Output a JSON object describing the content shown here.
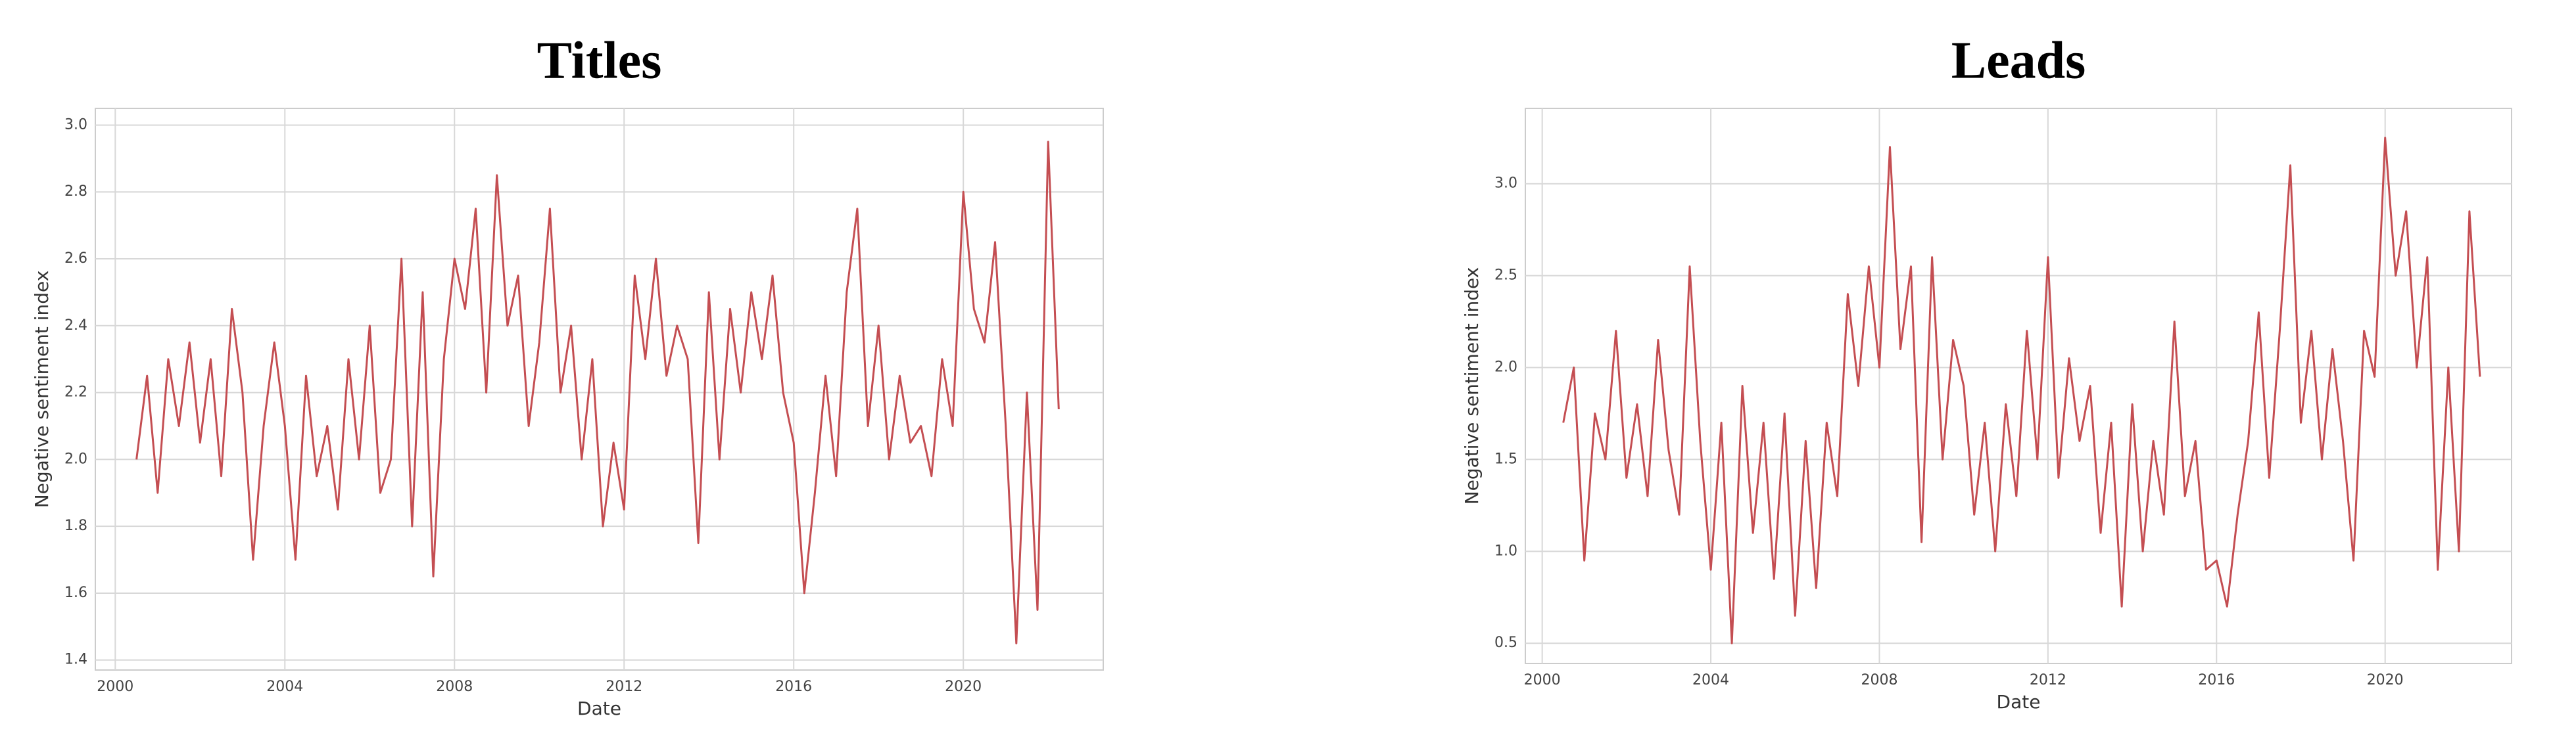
{
  "chart_data": [
    {
      "type": "line",
      "title": "Titles",
      "xlabel": "Date",
      "ylabel": "Negative sentiment index",
      "xlim": [
        1999.53,
        2023.3
      ],
      "ylim": [
        1.37,
        3.05
      ],
      "grid": true,
      "xticks": [
        2000,
        2004,
        2008,
        2012,
        2016,
        2020
      ],
      "yticks": [
        1.4,
        1.6,
        1.8,
        {
          "value": 2,
          "label": "2.0"
        },
        2.2,
        2.4,
        2.6,
        2.8,
        {
          "value": 3,
          "label": "3.0"
        }
      ],
      "x": [
        2000.5,
        2000.75,
        2001,
        2001.25,
        2001.5,
        2001.75,
        2002,
        2002.25,
        2002.5,
        2002.75,
        2003,
        2003.25,
        2003.5,
        2003.75,
        2004,
        2004.25,
        2004.5,
        2004.75,
        2005,
        2005.25,
        2005.5,
        2005.75,
        2006,
        2006.25,
        2006.5,
        2006.75,
        2007,
        2007.25,
        2007.5,
        2007.75,
        2008,
        2008.25,
        2008.5,
        2008.75,
        2009,
        2009.25,
        2009.5,
        2009.75,
        2010,
        2010.25,
        2010.5,
        2010.75,
        2011,
        2011.25,
        2011.5,
        2011.75,
        2012,
        2012.25,
        2012.5,
        2012.75,
        2013,
        2013.25,
        2013.5,
        2013.75,
        2014,
        2014.25,
        2014.5,
        2014.75,
        2015,
        2015.25,
        2015.5,
        2015.75,
        2016,
        2016.25,
        2016.5,
        2016.75,
        2017,
        2017.25,
        2017.5,
        2017.75,
        2018,
        2018.25,
        2018.5,
        2018.75,
        2019,
        2019.25,
        2019.5,
        2019.75,
        2020,
        2020.25,
        2020.5,
        2020.75,
        2021,
        2021.25,
        2021.5,
        2021.75,
        2022,
        2022.25
      ],
      "series": [
        {
          "name": "Titles",
          "color": "#c44e52",
          "values": [
            2.0,
            2.25,
            1.9,
            2.3,
            2.1,
            2.35,
            2.05,
            2.3,
            1.95,
            2.45,
            2.2,
            1.7,
            2.1,
            2.35,
            2.1,
            1.7,
            2.25,
            1.95,
            2.1,
            1.85,
            2.3,
            2.0,
            2.4,
            1.9,
            2.0,
            2.6,
            1.8,
            2.5,
            1.65,
            2.3,
            2.6,
            2.45,
            2.75,
            2.2,
            2.85,
            2.4,
            2.55,
            2.1,
            2.35,
            2.75,
            2.2,
            2.4,
            2.0,
            2.3,
            1.8,
            2.05,
            1.85,
            2.55,
            2.3,
            2.6,
            2.25,
            2.4,
            2.3,
            1.75,
            2.5,
            2.0,
            2.45,
            2.2,
            2.5,
            2.3,
            2.55,
            2.2,
            2.05,
            1.6,
            1.9,
            2.25,
            1.95,
            2.5,
            2.75,
            2.1,
            2.4,
            2.0,
            2.25,
            2.05,
            2.1,
            1.95,
            2.3,
            2.1,
            2.8,
            2.45,
            2.35,
            2.65,
            2.1,
            1.45,
            2.2,
            1.55,
            2.95,
            2.15
          ]
        }
      ]
    },
    {
      "type": "line",
      "title": "Leads",
      "xlabel": "Date",
      "ylabel": "Negative sentiment index",
      "xlim": [
        1999.6,
        2023.0
      ],
      "ylim": [
        0.39,
        3.41
      ],
      "grid": true,
      "xticks": [
        2000,
        2004,
        2008,
        2012,
        2016,
        2020
      ],
      "yticks": [
        0.5,
        {
          "value": 1,
          "label": "1.0"
        },
        1.5,
        {
          "value": 2,
          "label": "2.0"
        },
        2.5,
        {
          "value": 3,
          "label": "3.0"
        }
      ],
      "x": [
        2000.5,
        2000.75,
        2001,
        2001.25,
        2001.5,
        2001.75,
        2002,
        2002.25,
        2002.5,
        2002.75,
        2003,
        2003.25,
        2003.5,
        2003.75,
        2004,
        2004.25,
        2004.5,
        2004.75,
        2005,
        2005.25,
        2005.5,
        2005.75,
        2006,
        2006.25,
        2006.5,
        2006.75,
        2007,
        2007.25,
        2007.5,
        2007.75,
        2008,
        2008.25,
        2008.5,
        2008.75,
        2009,
        2009.25,
        2009.5,
        2009.75,
        2010,
        2010.25,
        2010.5,
        2010.75,
        2011,
        2011.25,
        2011.5,
        2011.75,
        2012,
        2012.25,
        2012.5,
        2012.75,
        2013,
        2013.25,
        2013.5,
        2013.75,
        2014,
        2014.25,
        2014.5,
        2014.75,
        2015,
        2015.25,
        2015.5,
        2015.75,
        2016,
        2016.25,
        2016.5,
        2016.75,
        2017,
        2017.25,
        2017.5,
        2017.75,
        2018,
        2018.25,
        2018.5,
        2018.75,
        2019,
        2019.25,
        2019.5,
        2019.75,
        2020,
        2020.25,
        2020.5,
        2020.75,
        2021,
        2021.25,
        2021.5,
        2021.75,
        2022,
        2022.25
      ],
      "series": [
        {
          "name": "Leads",
          "color": "#c44e52",
          "values": [
            1.7,
            2.0,
            0.95,
            1.75,
            1.5,
            2.2,
            1.4,
            1.8,
            1.3,
            2.15,
            1.55,
            1.2,
            2.55,
            1.6,
            0.9,
            1.7,
            0.5,
            1.9,
            1.1,
            1.7,
            0.85,
            1.75,
            0.65,
            1.6,
            0.8,
            1.7,
            1.3,
            2.4,
            1.9,
            2.55,
            2.0,
            3.2,
            2.1,
            2.55,
            1.05,
            2.6,
            1.5,
            2.15,
            1.9,
            1.2,
            1.7,
            1.0,
            1.8,
            1.3,
            2.2,
            1.5,
            2.6,
            1.4,
            2.05,
            1.6,
            1.9,
            1.1,
            1.7,
            0.7,
            1.8,
            1.0,
            1.6,
            1.2,
            2.25,
            1.3,
            1.6,
            0.9,
            0.95,
            0.7,
            1.2,
            1.6,
            2.3,
            1.4,
            2.2,
            3.1,
            1.7,
            2.2,
            1.5,
            2.1,
            1.6,
            0.95,
            2.2,
            1.95,
            3.25,
            2.5,
            2.85,
            2.0,
            2.6,
            0.9,
            2.0,
            1.0,
            2.85,
            1.95
          ]
        }
      ]
    }
  ]
}
